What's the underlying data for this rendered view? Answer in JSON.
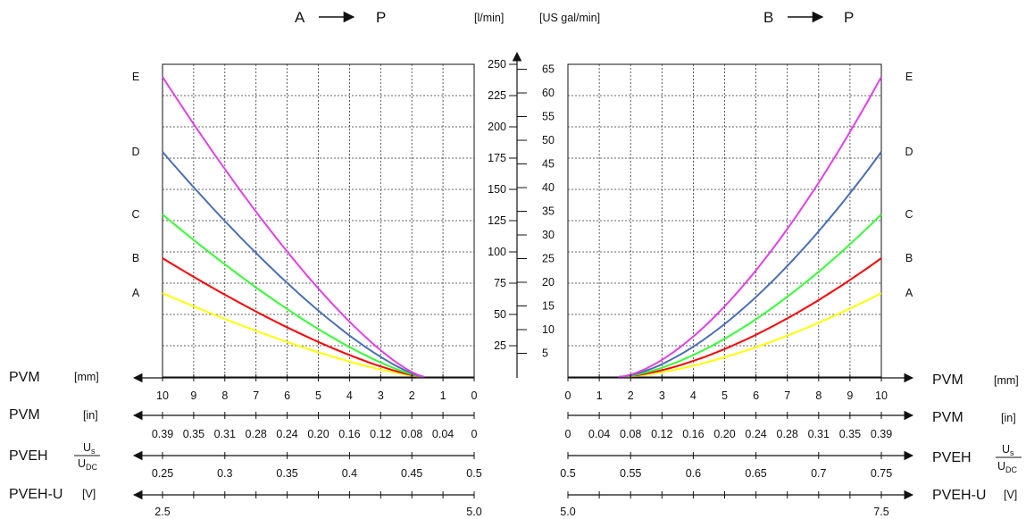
{
  "chart_data": {
    "type": "line",
    "panels": [
      {
        "flow_heading": {
          "from": "A",
          "to": "P"
        },
        "direction": "left",
        "x_start_mm": 1.6,
        "x_range_mm": [
          0,
          10
        ],
        "series": [
          {
            "name": "A",
            "color": "#ffff00",
            "end_flow_lpm": 67
          },
          {
            "name": "B",
            "color": "#ff0000",
            "end_flow_lpm": 95
          },
          {
            "name": "C",
            "color": "#33ff33",
            "end_flow_lpm": 130
          },
          {
            "name": "D",
            "color": "#4a6fb5",
            "end_flow_lpm": 180
          },
          {
            "name": "E",
            "color": "#e040e8",
            "end_flow_lpm": 240
          }
        ]
      },
      {
        "flow_heading": {
          "from": "B",
          "to": "P"
        },
        "direction": "right",
        "x_start_mm": 1.6,
        "x_range_mm": [
          0,
          10
        ],
        "series": [
          {
            "name": "A",
            "color": "#ffff00",
            "end_flow_lpm": 67
          },
          {
            "name": "B",
            "color": "#ff0000",
            "end_flow_lpm": 95
          },
          {
            "name": "C",
            "color": "#33ff33",
            "end_flow_lpm": 130
          },
          {
            "name": "D",
            "color": "#4a6fb5",
            "end_flow_lpm": 180
          },
          {
            "name": "E",
            "color": "#e040e8",
            "end_flow_lpm": 240
          }
        ]
      }
    ],
    "y_axis": {
      "unit_left": "[l/min]",
      "unit_right": "[US gal/min]",
      "lpm_ticks": [
        "250",
        "225",
        "200",
        "175",
        "150",
        "125",
        "100",
        "75",
        "50",
        "25"
      ],
      "lpm_values": [
        250,
        225,
        200,
        175,
        150,
        125,
        100,
        75,
        50,
        25
      ],
      "gpm_ticks": [
        "65",
        "60",
        "55",
        "50",
        "45",
        "40",
        "35",
        "30",
        "25",
        "20",
        "15",
        "10",
        "5"
      ],
      "gpm_values": [
        65,
        60,
        55,
        50,
        45,
        40,
        35,
        30,
        25,
        20,
        15,
        10,
        5
      ],
      "ylim_lpm": [
        0,
        250
      ]
    },
    "x_axes": {
      "pvm_mm": {
        "label": "PVM",
        "unit": "[mm]",
        "left_ticks": [
          "10",
          "9",
          "8",
          "7",
          "6",
          "5",
          "4",
          "3",
          "2",
          "1",
          "0"
        ],
        "right_ticks": [
          "0",
          "1",
          "2",
          "3",
          "4",
          "5",
          "6",
          "7",
          "8",
          "9",
          "10"
        ]
      },
      "pvm_in": {
        "label": "PVM",
        "unit": "[in]",
        "left_ticks": [
          "0.39",
          "0.35",
          "0.31",
          "0.28",
          "0.24",
          "0.20",
          "0.16",
          "0.12",
          "0.08",
          "0.04",
          "0"
        ],
        "right_ticks": [
          "0",
          "0.04",
          "0.08",
          "0.12",
          "0.16",
          "0.20",
          "0.24",
          "0.28",
          "0.31",
          "0.35",
          "0.39"
        ]
      },
      "pveh": {
        "label": "PVEH",
        "unit_num": "U",
        "unit_num_sub": "s",
        "unit_den": "U",
        "unit_den_sub": "DC",
        "left_ticks": [
          "0.25",
          "0.3",
          "0.35",
          "0.4",
          "0.45",
          "0.5"
        ],
        "left_values": [
          0.25,
          0.3,
          0.35,
          0.4,
          0.45,
          0.5
        ],
        "right_ticks": [
          "0.5",
          "0.55",
          "0.6",
          "0.65",
          "0.7",
          "0.75"
        ],
        "right_values": [
          0.5,
          0.55,
          0.6,
          0.65,
          0.7,
          0.75
        ]
      },
      "pveh_u": {
        "label": "PVEH-U",
        "unit": "[V]",
        "left_ticks": [
          "2.5",
          "5.0"
        ],
        "left_values": [
          2.5,
          5.0
        ],
        "right_ticks": [
          "5.0",
          "7.5"
        ],
        "right_values": [
          5.0,
          7.5
        ]
      }
    }
  }
}
